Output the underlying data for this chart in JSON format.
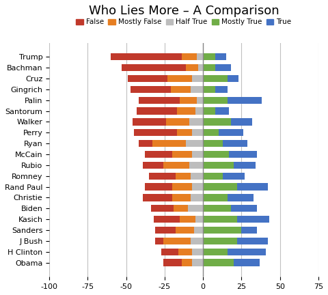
{
  "title": "Who Lies More – A Comparison",
  "categories": [
    "Trump",
    "Bachman",
    "Cruz",
    "Gingrich",
    "Palin",
    "Santorum",
    "Walker",
    "Perry",
    "Ryan",
    "McCain",
    "Rubio",
    "Romney",
    "Rand Paul",
    "Christie",
    "Biden",
    "Kasich",
    "Sanders",
    "J Bush",
    "H Clinton",
    "Obama"
  ],
  "series": {
    "False": [
      46,
      42,
      26,
      26,
      27,
      26,
      22,
      28,
      9,
      18,
      13,
      17,
      18,
      19,
      15,
      17,
      13,
      5,
      11,
      12
    ],
    "Mostly False": [
      10,
      8,
      16,
      13,
      11,
      12,
      15,
      10,
      22,
      13,
      17,
      10,
      13,
      12,
      9,
      10,
      12,
      18,
      9,
      7
    ],
    "Half True": [
      4,
      3,
      7,
      8,
      4,
      5,
      9,
      7,
      11,
      7,
      9,
      8,
      7,
      8,
      10,
      5,
      6,
      8,
      7,
      7
    ],
    "Mostly True": [
      8,
      8,
      16,
      8,
      16,
      8,
      18,
      10,
      13,
      17,
      20,
      13,
      22,
      16,
      18,
      22,
      25,
      22,
      16,
      20
    ],
    "True": [
      7,
      10,
      7,
      8,
      22,
      9,
      14,
      16,
      16,
      18,
      14,
      14,
      20,
      17,
      17,
      21,
      10,
      20,
      25,
      17
    ]
  },
  "colors": {
    "False": "#C0392B",
    "Mostly False": "#E67E22",
    "Half True": "#BDBDBD",
    "Mostly True": "#70AD47",
    "True": "#4472C4"
  },
  "xlim": [
    -100,
    75
  ],
  "xticks": [
    -100,
    -75,
    -50,
    -25,
    0,
    25,
    50,
    75
  ],
  "legend_labels": [
    "False",
    "Mostly False",
    "Half True",
    "Mostly True",
    "True"
  ],
  "background_color": "#FFFFFF",
  "gridline_color": "#C0C0C0",
  "bar_height": 0.65,
  "title_fontsize": 13,
  "tick_fontsize": 8,
  "legend_fontsize": 7.5
}
